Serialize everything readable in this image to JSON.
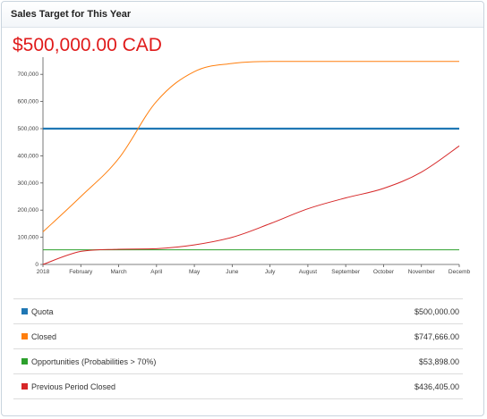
{
  "widget": {
    "title": "Sales Target for This Year",
    "total": "$500,000.00 CAD"
  },
  "chart_data": {
    "type": "line",
    "x": [
      "2018",
      "February",
      "March",
      "April",
      "May",
      "June",
      "July",
      "August",
      "September",
      "October",
      "November",
      "Decemb"
    ],
    "ylim": [
      0,
      750000
    ],
    "yticks": [
      "0",
      "100,000",
      "200,000",
      "300,000",
      "400,000",
      "500,000",
      "600,000",
      "700,000"
    ],
    "series": [
      {
        "name": "Quota",
        "color": "#1f77b4",
        "values": [
          500000,
          500000,
          500000,
          500000,
          500000,
          500000,
          500000,
          500000,
          500000,
          500000,
          500000,
          500000
        ]
      },
      {
        "name": "Closed",
        "color": "#ff7f0e",
        "values": [
          120000,
          250000,
          390000,
          600000,
          710000,
          740000,
          747666,
          747666,
          747666,
          747666,
          747666,
          747666
        ]
      },
      {
        "name": "Opportunities (Probabilities > 70%)",
        "color": "#2ca02c",
        "values": [
          53898,
          53898,
          53898,
          53898,
          53898,
          53898,
          53898,
          53898,
          53898,
          53898,
          53898,
          53898
        ]
      },
      {
        "name": "Previous Period Closed",
        "color": "#d62728",
        "values": [
          0,
          48000,
          56000,
          58000,
          72000,
          100000,
          150000,
          205000,
          245000,
          280000,
          340000,
          436405
        ]
      }
    ]
  },
  "legend": [
    {
      "label": "Quota",
      "value": "$500,000.00",
      "color": "#1f77b4"
    },
    {
      "label": "Closed",
      "value": "$747,666.00",
      "color": "#ff7f0e"
    },
    {
      "label": "Opportunities (Probabilities > 70%)",
      "value": "$53,898.00",
      "color": "#2ca02c"
    },
    {
      "label": "Previous Period Closed",
      "value": "$436,405.00",
      "color": "#d62728"
    }
  ]
}
